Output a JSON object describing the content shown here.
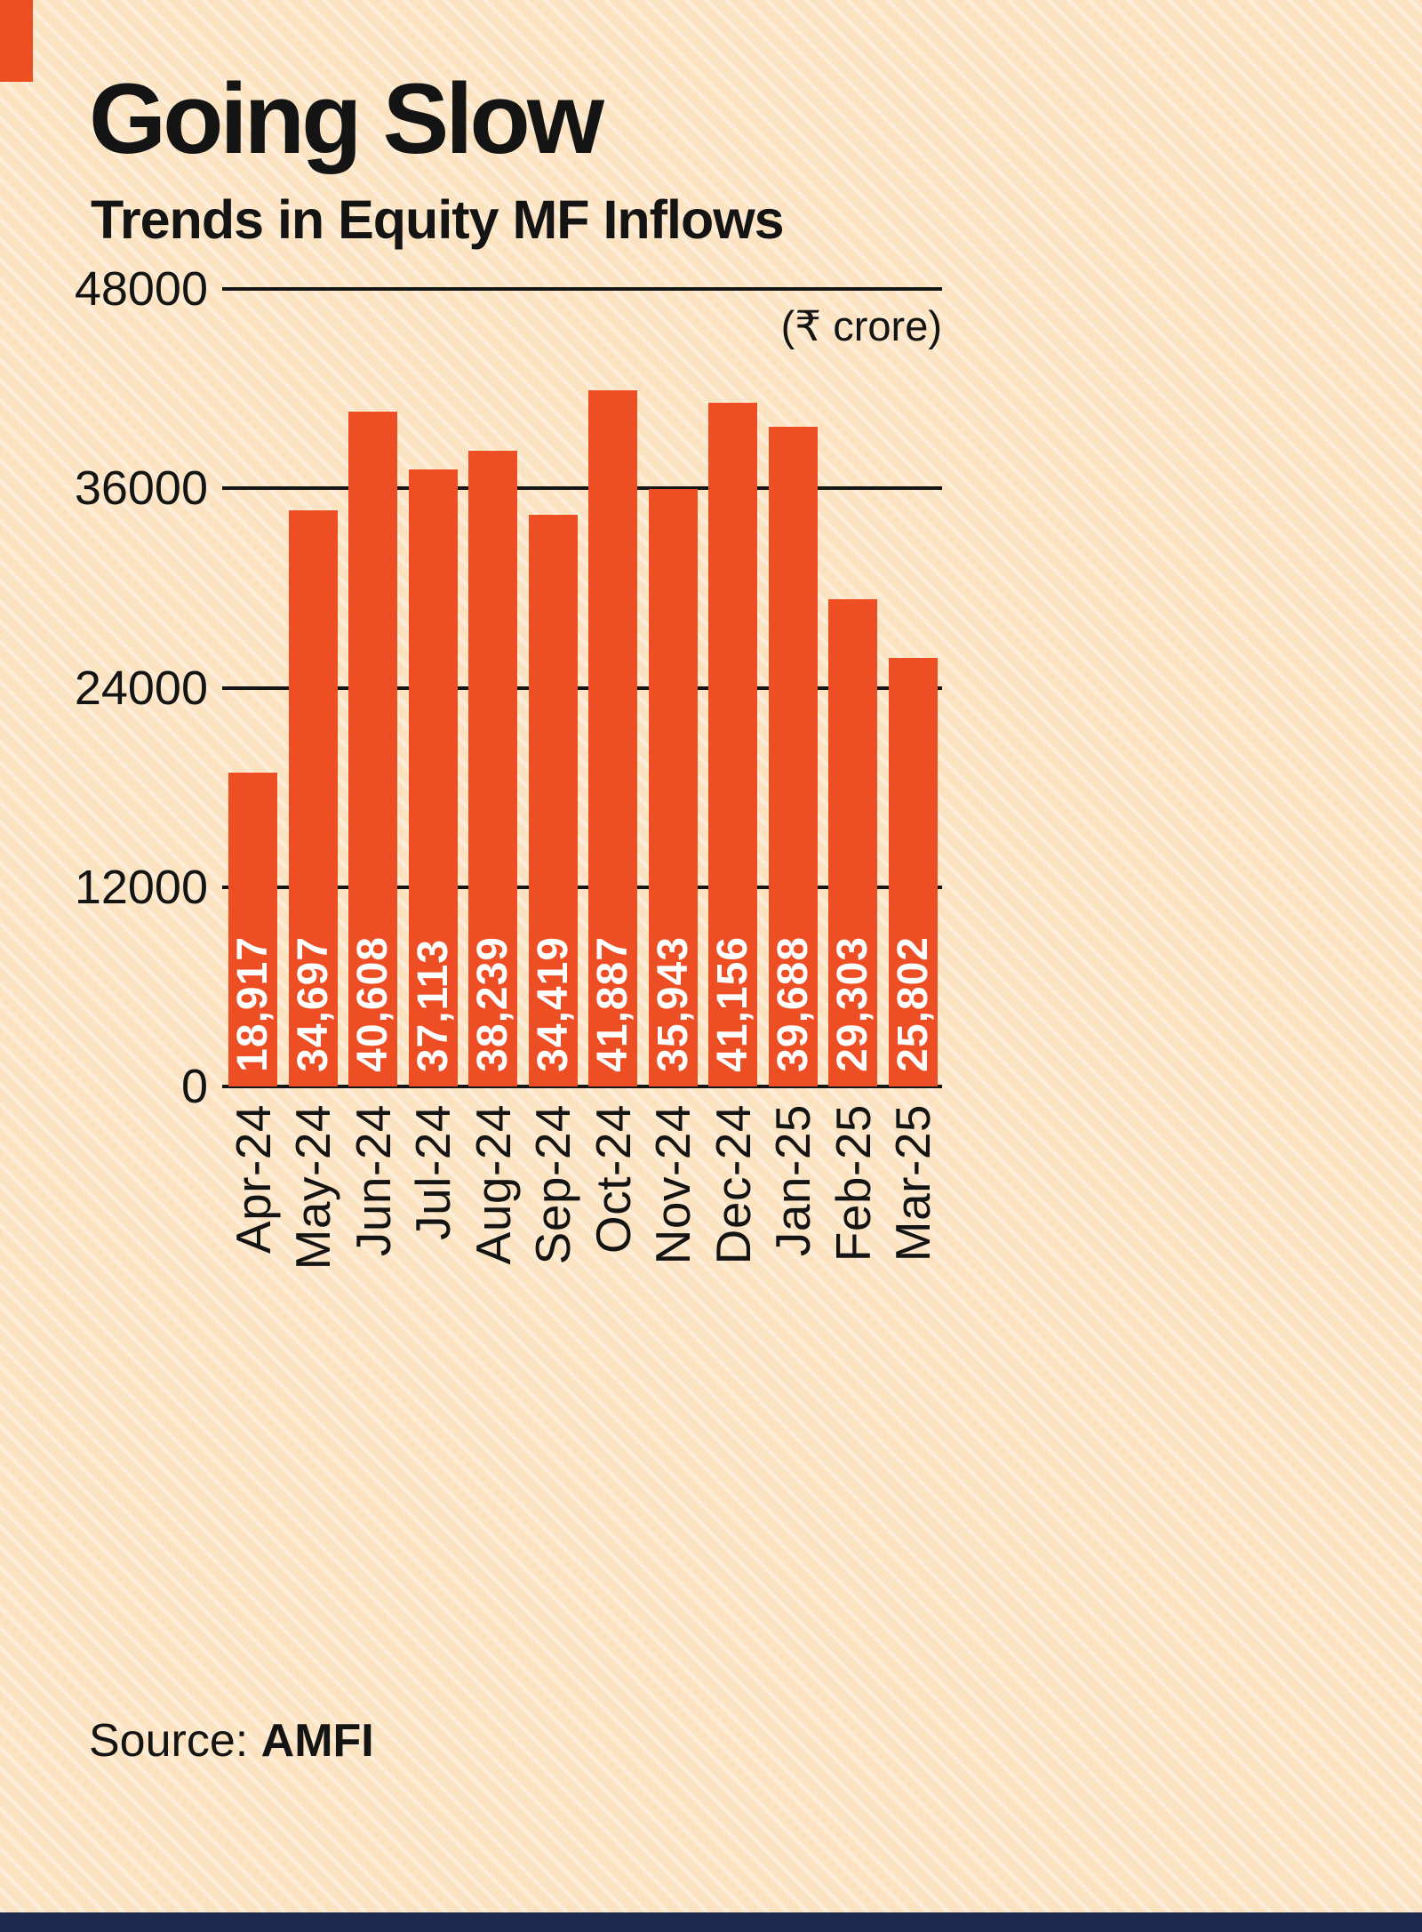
{
  "colors": {
    "bg": "#fbe2c0",
    "accent": "#ee4e23",
    "text": "#141414",
    "footer-bar": "#1d2b4e",
    "bar-label": "#ffffff"
  },
  "header": {
    "title": "Going Slow",
    "subtitle": "Trends in Equity MF Inflows"
  },
  "chart_data": {
    "type": "bar",
    "title": "Going Slow",
    "subtitle": "Trends in Equity MF Inflows",
    "unit_label": "(₹ crore)",
    "categories": [
      "Apr-24",
      "May-24",
      "Jun-24",
      "Jul-24",
      "Aug-24",
      "Sep-24",
      "Oct-24",
      "Nov-24",
      "Dec-24",
      "Jan-25",
      "Feb-25",
      "Mar-25"
    ],
    "values": [
      18917,
      34697,
      40608,
      37113,
      38239,
      34419,
      41887,
      35943,
      41156,
      39688,
      29303,
      25802
    ],
    "value_labels": [
      "18,917",
      "34,697",
      "40,608",
      "37,113",
      "38,239",
      "34,419",
      "41,887",
      "35,943",
      "41,156",
      "39,688",
      "29,303",
      "25,802"
    ],
    "y_ticks": [
      48000,
      36000,
      24000,
      12000,
      0
    ],
    "ylim": [
      0,
      48000
    ],
    "grid": true,
    "legend": "none"
  },
  "footer": {
    "source_label": "Source:",
    "source_value": "AMFI"
  }
}
